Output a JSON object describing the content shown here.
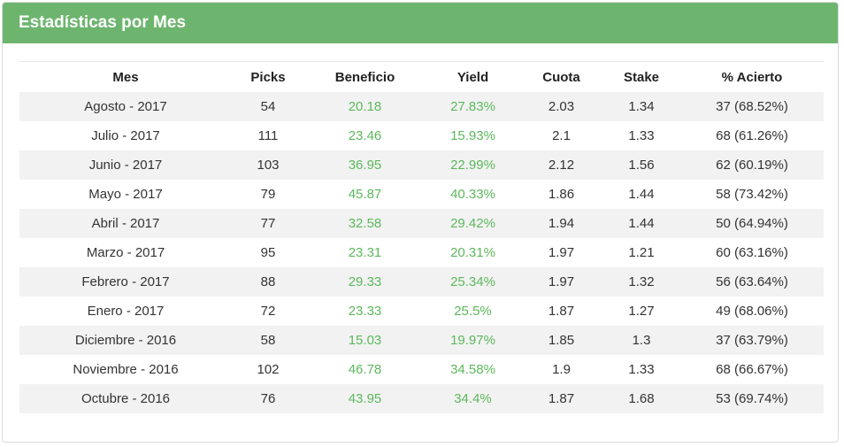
{
  "panel": {
    "title": "Estadísticas por Mes"
  },
  "colors": {
    "header_bg": "#6db56f",
    "positive_text": "#5cb85c",
    "stripe_row": "#f2f2f2"
  },
  "table": {
    "headers": [
      "Mes",
      "Picks",
      "Beneficio",
      "Yield",
      "Cuota",
      "Stake",
      "% Acierto"
    ],
    "rows": [
      [
        "Agosto - 2017",
        "54",
        "20.18",
        "27.83%",
        "2.03",
        "1.34",
        "37 (68.52%)"
      ],
      [
        "Julio - 2017",
        "111",
        "23.46",
        "15.93%",
        "2.1",
        "1.33",
        "68 (61.26%)"
      ],
      [
        "Junio - 2017",
        "103",
        "36.95",
        "22.99%",
        "2.12",
        "1.56",
        "62 (60.19%)"
      ],
      [
        "Mayo - 2017",
        "79",
        "45.87",
        "40.33%",
        "1.86",
        "1.44",
        "58 (73.42%)"
      ],
      [
        "Abril - 2017",
        "77",
        "32.58",
        "29.42%",
        "1.94",
        "1.44",
        "50 (64.94%)"
      ],
      [
        "Marzo - 2017",
        "95",
        "23.31",
        "20.31%",
        "1.97",
        "1.21",
        "60 (63.16%)"
      ],
      [
        "Febrero - 2017",
        "88",
        "29.33",
        "25.34%",
        "1.97",
        "1.32",
        "56 (63.64%)"
      ],
      [
        "Enero - 2017",
        "72",
        "23.33",
        "25.5%",
        "1.87",
        "1.27",
        "49 (68.06%)"
      ],
      [
        "Diciembre - 2016",
        "58",
        "15.03",
        "19.97%",
        "1.85",
        "1.3",
        "37 (63.79%)"
      ],
      [
        "Noviembre - 2016",
        "102",
        "46.78",
        "34.58%",
        "1.9",
        "1.33",
        "68 (66.67%)"
      ],
      [
        "Octubre - 2016",
        "76",
        "43.95",
        "34.4%",
        "1.87",
        "1.68",
        "53 (69.74%)"
      ]
    ]
  }
}
